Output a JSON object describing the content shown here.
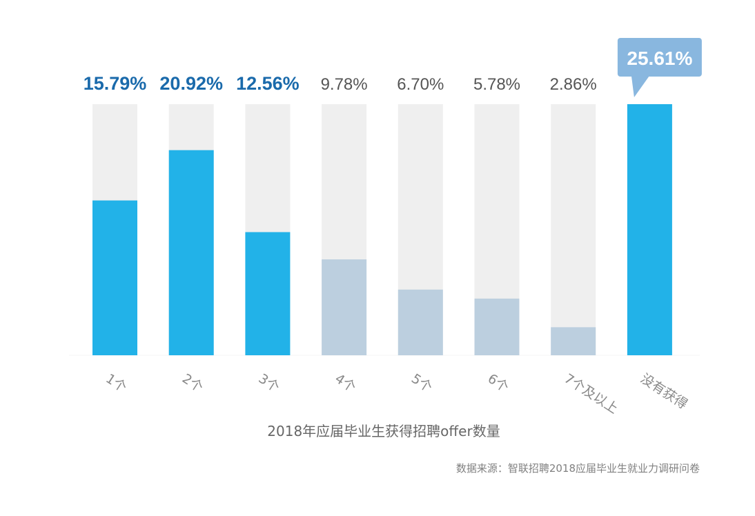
{
  "chart_data": {
    "type": "bar",
    "categories": [
      "1个",
      "2个",
      "3个",
      "4个",
      "5个",
      "6个",
      "7个及以上",
      "没有获得"
    ],
    "values": [
      15.79,
      20.92,
      12.56,
      9.78,
      6.7,
      5.78,
      2.86,
      25.61
    ],
    "value_labels": [
      "15.79%",
      "20.92%",
      "12.56%",
      "9.78%",
      "6.70%",
      "5.78%",
      "2.86%",
      "25.61%"
    ],
    "highlighted": [
      true,
      true,
      true,
      false,
      false,
      false,
      false,
      true
    ],
    "callout_index": 7,
    "title": "",
    "subtitle": "2018年应届毕业生获得招聘offer数量",
    "source": "数据来源：智联招聘2018应届毕业生就业力调研问卷",
    "xlabel": "",
    "ylabel": "",
    "ylim": [
      0,
      25.61
    ],
    "grid": false,
    "legend": "none",
    "colors": {
      "highlight_bar": "#22b2e8",
      "muted_bar": "#bccfdf",
      "track": "#efefef",
      "highlight_label": "#1a6aab",
      "muted_label": "#555555",
      "callout_bg": "#89b7df",
      "callout_text": "#ffffff",
      "axis_label": "#888888"
    }
  }
}
